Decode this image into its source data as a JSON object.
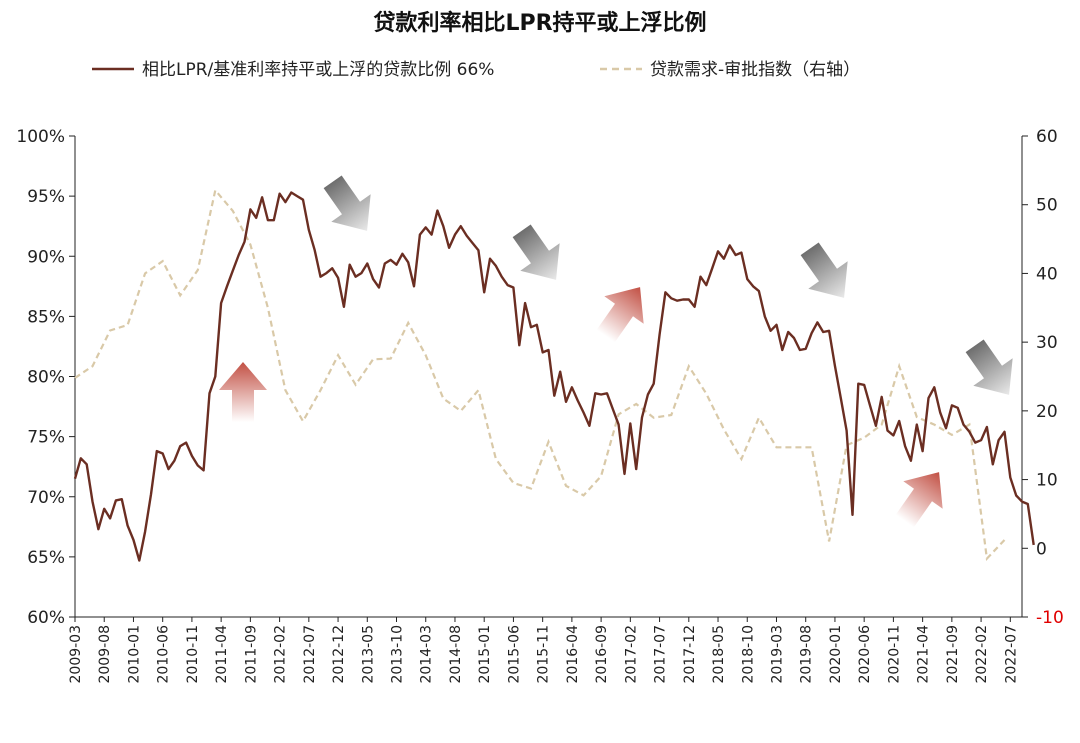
{
  "chart_data": {
    "type": "line",
    "title": "贷款利率相比LPR持平或上浮比例",
    "legend_position": "top",
    "grid": false,
    "colors": {
      "series_left": "#6b2e22",
      "series_right": "#d9c9a8",
      "negative_tick": "#e00000",
      "arrow_up": "#c25044",
      "arrow_down": "#6e6e6e"
    },
    "y_left": {
      "min": 60,
      "max": 100,
      "step": 5,
      "format": "percent",
      "tick_labels": [
        "60%",
        "65%",
        "70%",
        "75%",
        "80%",
        "85%",
        "90%",
        "95%",
        "100%"
      ]
    },
    "y_right": {
      "min": -10,
      "max": 60,
      "step": 10,
      "tick_labels": [
        "-10",
        "0",
        "10",
        "20",
        "30",
        "40",
        "50",
        "60"
      ]
    },
    "x": {
      "start": "2009-03",
      "end": "2022-09",
      "label_every_months": 5,
      "tick_labels": [
        "2009-03",
        "2009-08",
        "2010-01",
        "2010-06",
        "2010-11",
        "2011-04",
        "2011-09",
        "2012-02",
        "2012-07",
        "2012-12",
        "2013-05",
        "2013-10",
        "2014-03",
        "2014-08",
        "2015-01",
        "2015-06",
        "2015-11",
        "2016-04",
        "2016-09",
        "2017-02",
        "2017-07",
        "2017-12",
        "2018-05",
        "2018-10",
        "2019-03",
        "2019-08",
        "2020-01",
        "2020-06",
        "2020-11",
        "2021-04",
        "2021-09",
        "2022-02",
        "2022-07"
      ]
    },
    "series": [
      {
        "name": "相比LPR/基准利率持平或上浮的贷款比例 66%",
        "axis": "left",
        "frequency": "monthly",
        "start": "2009-03",
        "values": [
          71.5,
          73.2,
          72.7,
          69.6,
          67.3,
          69.0,
          68.2,
          69.7,
          69.8,
          67.6,
          66.4,
          64.7,
          67.1,
          70.2,
          73.8,
          73.6,
          72.3,
          73.0,
          74.2,
          74.5,
          73.4,
          72.6,
          72.2,
          78.6,
          80.0,
          86.1,
          87.5,
          88.8,
          90.1,
          91.2,
          93.9,
          93.2,
          94.9,
          93.0,
          93.0,
          95.2,
          94.5,
          95.3,
          95.0,
          94.7,
          92.2,
          90.5,
          88.3,
          88.6,
          89.0,
          88.2,
          85.8,
          89.3,
          88.3,
          88.6,
          89.4,
          88.1,
          87.4,
          89.4,
          89.7,
          89.3,
          90.2,
          89.5,
          87.5,
          91.8,
          92.4,
          91.8,
          93.8,
          92.5,
          90.7,
          91.8,
          92.5,
          91.7,
          91.1,
          90.5,
          87.0,
          89.8,
          89.2,
          88.3,
          87.6,
          87.4,
          82.6,
          86.1,
          84.1,
          84.3,
          82.0,
          82.2,
          78.4,
          80.4,
          77.9,
          79.1,
          78.0,
          77.0,
          75.9,
          78.6,
          78.5,
          78.6,
          77.3,
          76.0,
          71.9,
          76.1,
          72.3,
          76.6,
          78.5,
          79.4,
          83.5,
          87.0,
          86.5,
          86.3,
          86.4,
          86.4,
          85.8,
          88.3,
          87.6,
          89.0,
          90.4,
          89.8,
          90.9,
          90.1,
          90.3,
          88.1,
          87.5,
          87.1,
          85.0,
          83.8,
          84.3,
          82.2,
          83.7,
          83.2,
          82.2,
          82.3,
          83.6,
          84.5,
          83.7,
          83.8,
          80.9,
          78.2,
          75.5,
          68.5,
          79.4,
          79.3,
          77.6,
          75.9,
          78.3,
          75.5,
          75.1,
          76.3,
          74.2,
          73.0,
          76.0,
          73.8,
          78.2,
          79.1,
          77.0,
          75.7,
          77.6,
          77.4,
          76.0,
          75.4,
          74.5,
          74.7,
          75.8,
          72.7,
          74.7,
          75.4,
          71.6,
          70.1,
          69.6,
          69.4,
          66.0
        ]
      },
      {
        "name": "贷款需求-审批指数（右轴）",
        "axis": "right",
        "frequency": "quarterly",
        "start": "2009-03",
        "values": [
          24.8,
          26.5,
          31.7,
          32.5,
          40.0,
          41.8,
          36.8,
          40.5,
          52.1,
          49.1,
          44.2,
          35.0,
          23.0,
          18.5,
          23.0,
          28.1,
          23.8,
          27.5,
          27.6,
          32.8,
          28.1,
          21.8,
          20.0,
          23.0,
          13.0,
          9.5,
          8.7,
          15.5,
          9.1,
          7.7,
          10.5,
          19.5,
          21.0,
          19.0,
          19.4,
          26.5,
          22.5,
          17.3,
          13.0,
          19.0,
          14.7,
          14.7,
          14.7,
          1.0,
          15.0,
          16.1,
          18.0,
          26.5,
          19.1,
          18.0,
          16.5,
          18.0,
          -1.5,
          1.2
        ]
      }
    ],
    "annotations": [
      {
        "type": "arrow",
        "direction": "up",
        "near": "2010-09"
      },
      {
        "type": "arrow",
        "direction": "down",
        "near": "2012-12"
      },
      {
        "type": "arrow",
        "direction": "down",
        "near": "2015-09"
      },
      {
        "type": "arrow",
        "direction": "up",
        "near": "2017-06"
      },
      {
        "type": "arrow",
        "direction": "down",
        "near": "2019-09"
      },
      {
        "type": "arrow",
        "direction": "up",
        "near": "2021-03"
      },
      {
        "type": "arrow",
        "direction": "down",
        "near": "2022-07"
      }
    ]
  }
}
